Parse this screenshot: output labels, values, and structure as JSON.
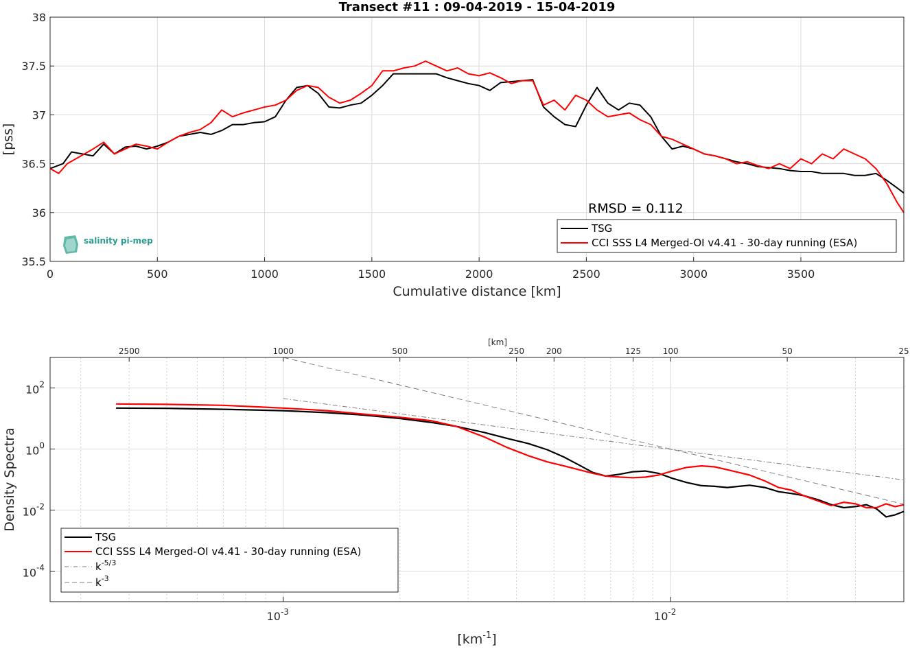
{
  "chart_data": [
    {
      "type": "line",
      "title": "Transect #11 : 09-04-2019 - 15-04-2019",
      "xlabel": "Cumulative distance [km]",
      "ylabel": "[pss]",
      "xlim": [
        0,
        3980
      ],
      "ylim": [
        35.5,
        38
      ],
      "xticks": [
        "0",
        "500",
        "1000",
        "1500",
        "2000",
        "2500",
        "3000",
        "3500"
      ],
      "yticks": [
        "35.5",
        "36",
        "36.5",
        "37",
        "37.5",
        "38"
      ],
      "grid": true,
      "legend_position": "bottom-right",
      "annotation": "RMSD = 0.112",
      "logo": "salinity pi-mep",
      "series": [
        {
          "name": "TSG",
          "color": "#000000",
          "x": [
            0,
            60,
            100,
            150,
            200,
            250,
            300,
            350,
            400,
            450,
            500,
            550,
            600,
            650,
            700,
            750,
            800,
            850,
            900,
            950,
            1000,
            1050,
            1100,
            1150,
            1200,
            1250,
            1300,
            1350,
            1400,
            1450,
            1500,
            1550,
            1600,
            1650,
            1700,
            1750,
            1800,
            1850,
            1900,
            1950,
            2000,
            2050,
            2100,
            2150,
            2200,
            2250,
            2300,
            2350,
            2400,
            2450,
            2500,
            2550,
            2600,
            2650,
            2700,
            2750,
            2800,
            2850,
            2900,
            2950,
            3000,
            3050,
            3100,
            3150,
            3200,
            3250,
            3300,
            3350,
            3400,
            3450,
            3500,
            3550,
            3600,
            3650,
            3700,
            3750,
            3800,
            3850,
            3900,
            3950,
            3980
          ],
          "y": [
            36.45,
            36.5,
            36.62,
            36.6,
            36.58,
            36.7,
            36.6,
            36.67,
            36.68,
            36.65,
            36.68,
            36.72,
            36.78,
            36.8,
            36.82,
            36.8,
            36.84,
            36.9,
            36.9,
            36.92,
            36.93,
            36.98,
            37.15,
            37.28,
            37.3,
            37.22,
            37.08,
            37.07,
            37.1,
            37.12,
            37.2,
            37.3,
            37.42,
            37.42,
            37.42,
            37.42,
            37.42,
            37.38,
            37.35,
            37.32,
            37.3,
            37.25,
            37.33,
            37.34,
            37.35,
            37.36,
            37.08,
            36.98,
            36.9,
            36.88,
            37.1,
            37.28,
            37.12,
            37.05,
            37.12,
            37.1,
            36.98,
            36.78,
            36.65,
            36.68,
            36.65,
            36.6,
            36.58,
            36.55,
            36.52,
            36.5,
            36.47,
            36.46,
            36.45,
            36.43,
            36.42,
            36.42,
            36.4,
            36.4,
            36.4,
            36.38,
            36.38,
            36.4,
            36.33,
            36.25,
            36.2
          ]
        },
        {
          "name": "CCI SSS L4 Merged-OI v4.41 - 30-day running (ESA)",
          "color": "#ff0000",
          "x": [
            0,
            40,
            80,
            120,
            160,
            200,
            250,
            300,
            350,
            400,
            450,
            500,
            550,
            600,
            650,
            700,
            750,
            800,
            850,
            900,
            950,
            1000,
            1050,
            1100,
            1150,
            1200,
            1250,
            1300,
            1350,
            1400,
            1450,
            1500,
            1550,
            1600,
            1650,
            1700,
            1750,
            1800,
            1850,
            1900,
            1950,
            2000,
            2050,
            2100,
            2150,
            2200,
            2250,
            2300,
            2350,
            2400,
            2450,
            2500,
            2550,
            2600,
            2650,
            2700,
            2750,
            2800,
            2850,
            2900,
            2950,
            3000,
            3050,
            3100,
            3150,
            3200,
            3250,
            3300,
            3350,
            3400,
            3450,
            3500,
            3550,
            3600,
            3650,
            3700,
            3750,
            3800,
            3850,
            3900,
            3950,
            3980
          ],
          "y": [
            36.45,
            36.4,
            36.5,
            36.55,
            36.6,
            36.65,
            36.72,
            36.6,
            36.65,
            36.7,
            36.68,
            36.65,
            36.72,
            36.78,
            36.82,
            36.85,
            36.92,
            37.05,
            36.98,
            37.02,
            37.05,
            37.08,
            37.1,
            37.15,
            37.25,
            37.3,
            37.28,
            37.18,
            37.12,
            37.15,
            37.22,
            37.3,
            37.45,
            37.45,
            37.48,
            37.5,
            37.55,
            37.5,
            37.45,
            37.48,
            37.42,
            37.4,
            37.43,
            37.38,
            37.32,
            37.35,
            37.35,
            37.1,
            37.15,
            37.05,
            37.2,
            37.15,
            37.05,
            36.98,
            37.0,
            37.02,
            36.95,
            36.9,
            36.78,
            36.75,
            36.7,
            36.65,
            36.6,
            36.58,
            36.55,
            36.5,
            36.52,
            36.48,
            36.45,
            36.5,
            36.45,
            36.55,
            36.5,
            36.6,
            36.55,
            36.65,
            36.6,
            36.55,
            36.45,
            36.3,
            36.1,
            36.0
          ]
        }
      ]
    },
    {
      "type": "line",
      "title": "",
      "xlabel": "[km-1]",
      "ylabel": "Density Spectra",
      "xscale": "log",
      "yscale": "log",
      "xlim": [
        0.00025,
        0.04
      ],
      "ylim": [
        1e-05,
        1000
      ],
      "xticks": [
        "10-3",
        "10-2"
      ],
      "yticks": [
        "10-4",
        "10-2",
        "100",
        "102"
      ],
      "top_axis_label": "[km]",
      "top_axis_ticks": [
        "2500",
        "1000",
        "500",
        "250",
        "200",
        "125",
        "100",
        "50",
        "25"
      ],
      "grid": true,
      "legend_position": "bottom-left",
      "series": [
        {
          "name": "TSG",
          "color": "#000000",
          "x": [
            0.00037,
            0.0005,
            0.0007,
            0.001,
            0.0013,
            0.0016,
            0.002,
            0.0024,
            0.0028,
            0.0033,
            0.0038,
            0.0043,
            0.0048,
            0.0053,
            0.0058,
            0.0063,
            0.0068,
            0.0074,
            0.008,
            0.0086,
            0.0093,
            0.0101,
            0.011,
            0.012,
            0.013,
            0.014,
            0.015,
            0.016,
            0.0175,
            0.019,
            0.0205,
            0.022,
            0.024,
            0.026,
            0.028,
            0.03,
            0.032,
            0.034,
            0.036,
            0.038,
            0.04
          ],
          "y": [
            22,
            21.5,
            20,
            18,
            15.5,
            13,
            10,
            7.5,
            5.5,
            3.5,
            2.2,
            1.5,
            0.95,
            0.55,
            0.3,
            0.17,
            0.13,
            0.15,
            0.18,
            0.19,
            0.16,
            0.11,
            0.08,
            0.063,
            0.06,
            0.055,
            0.06,
            0.065,
            0.055,
            0.04,
            0.035,
            0.03,
            0.022,
            0.015,
            0.012,
            0.013,
            0.015,
            0.011,
            0.006,
            0.007,
            0.009
          ]
        },
        {
          "name": "CCI SSS L4 Merged-OI v4.41 - 30-day running (ESA)",
          "color": "#ff0000",
          "x": [
            0.00037,
            0.0005,
            0.0007,
            0.001,
            0.0013,
            0.0016,
            0.002,
            0.0024,
            0.0028,
            0.0033,
            0.0038,
            0.0043,
            0.0048,
            0.0053,
            0.0058,
            0.0063,
            0.0068,
            0.0074,
            0.008,
            0.0086,
            0.0093,
            0.0101,
            0.011,
            0.012,
            0.013,
            0.014,
            0.015,
            0.016,
            0.0175,
            0.019,
            0.0205,
            0.022,
            0.024,
            0.026,
            0.028,
            0.03,
            0.032,
            0.034,
            0.036,
            0.038,
            0.04
          ],
          "y": [
            30,
            29,
            27,
            22,
            18,
            14,
            11,
            8.5,
            5.5,
            2.5,
            1.1,
            0.6,
            0.38,
            0.28,
            0.21,
            0.16,
            0.13,
            0.12,
            0.115,
            0.12,
            0.14,
            0.19,
            0.25,
            0.28,
            0.26,
            0.21,
            0.17,
            0.14,
            0.09,
            0.055,
            0.045,
            0.03,
            0.02,
            0.014,
            0.018,
            0.016,
            0.012,
            0.012,
            0.016,
            0.013,
            0.015
          ]
        },
        {
          "name": "k-5/3",
          "color": "#7f7f7f",
          "x": [
            0.001,
            0.04
          ],
          "y": [
            45,
            0.097
          ]
        },
        {
          "name": "k-3",
          "color": "#7f7f7f",
          "x": [
            0.001,
            0.04
          ],
          "y": [
            1000,
            0.0156
          ]
        }
      ]
    }
  ]
}
